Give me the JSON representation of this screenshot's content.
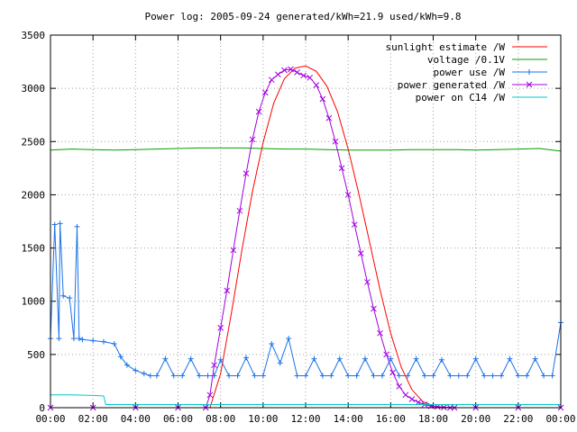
{
  "chart_data": {
    "type": "line",
    "title": "Power log: 2005-09-24 generated/kWh=21.9 used/kWh=9.8",
    "xlabel": "",
    "ylabel": "",
    "xlim": [
      0,
      24
    ],
    "ylim": [
      0,
      3500
    ],
    "grid": true,
    "legend_position": "top-right",
    "x_ticks": [
      "00:00",
      "02:00",
      "04:00",
      "06:00",
      "08:00",
      "10:00",
      "12:00",
      "14:00",
      "16:00",
      "18:00",
      "20:00",
      "22:00",
      "00:00"
    ],
    "y_ticks": [
      0,
      500,
      1000,
      1500,
      2000,
      2500,
      3000,
      3500
    ],
    "series": [
      {
        "name": "sunlight estimate /W",
        "color": "#ff0000",
        "style": "line",
        "x": [
          7.5,
          8,
          8.5,
          9,
          9.5,
          10,
          10.5,
          11,
          11.5,
          12,
          12.5,
          13,
          13.5,
          14,
          14.5,
          15,
          15.5,
          16,
          16.5,
          17,
          17.5,
          18,
          18.5,
          19,
          19.5
        ],
        "y": [
          0,
          320,
          880,
          1480,
          2030,
          2490,
          2860,
          3090,
          3190,
          3210,
          3160,
          3020,
          2780,
          2430,
          2010,
          1560,
          1110,
          700,
          380,
          170,
          60,
          15,
          5,
          0,
          0
        ]
      },
      {
        "name": "voltage /0.1V",
        "color": "#00a000",
        "style": "line",
        "x": [
          0,
          1,
          2,
          3,
          4,
          5,
          6,
          7,
          8,
          9,
          10,
          11,
          12,
          13,
          14,
          15,
          16,
          17,
          18,
          19,
          20,
          21,
          22,
          23,
          24
        ],
        "y": [
          2420,
          2430,
          2425,
          2420,
          2425,
          2430,
          2435,
          2440,
          2440,
          2440,
          2435,
          2430,
          2430,
          2425,
          2420,
          2420,
          2420,
          2425,
          2425,
          2425,
          2420,
          2425,
          2430,
          2435,
          2410
        ]
      },
      {
        "name": "power use /W",
        "color": "#1a73e8",
        "style": "linespoints-plus",
        "x": [
          0,
          0.2,
          0.4,
          0.45,
          0.6,
          0.9,
          1.1,
          1.25,
          1.35,
          1.5,
          2.0,
          2.5,
          3.0,
          3.3,
          3.6,
          4.0,
          4.4,
          4.7,
          5.0,
          5.4,
          5.8,
          6.2,
          6.6,
          7.0,
          7.4,
          7.7,
          8.0,
          8.4,
          8.8,
          9.2,
          9.6,
          10.0,
          10.4,
          10.8,
          11.2,
          11.6,
          12.0,
          12.4,
          12.8,
          13.2,
          13.6,
          14.0,
          14.4,
          14.8,
          15.2,
          15.6,
          16.0,
          16.4,
          16.8,
          17.2,
          17.6,
          18.0,
          18.4,
          18.8,
          19.2,
          19.6,
          20.0,
          20.4,
          20.8,
          21.2,
          21.6,
          22.0,
          22.4,
          22.8,
          23.2,
          23.6,
          24.0
        ],
        "y": [
          650,
          1720,
          650,
          1730,
          1050,
          1030,
          650,
          1700,
          650,
          640,
          630,
          620,
          600,
          480,
          400,
          350,
          320,
          300,
          300,
          460,
          300,
          300,
          460,
          300,
          300,
          300,
          450,
          300,
          300,
          470,
          300,
          300,
          600,
          420,
          650,
          300,
          300,
          460,
          300,
          300,
          460,
          300,
          300,
          460,
          300,
          300,
          460,
          300,
          300,
          460,
          300,
          300,
          450,
          300,
          300,
          300,
          460,
          300,
          300,
          300,
          460,
          300,
          300,
          460,
          300,
          300,
          800
        ]
      },
      {
        "name": "power generated /W",
        "color": "#a000e0",
        "style": "linespoints-x",
        "x": [
          0,
          2,
          4,
          6,
          7.3,
          7.5,
          7.7,
          8.0,
          8.3,
          8.6,
          8.9,
          9.2,
          9.5,
          9.8,
          10.1,
          10.4,
          10.7,
          11.0,
          11.3,
          11.6,
          11.9,
          12.2,
          12.5,
          12.8,
          13.1,
          13.4,
          13.7,
          14.0,
          14.3,
          14.6,
          14.9,
          15.2,
          15.5,
          15.8,
          16.1,
          16.4,
          16.7,
          17.0,
          17.3,
          17.6,
          17.9,
          18.2,
          18.5,
          18.8,
          19.0,
          20,
          22,
          24
        ],
        "y": [
          0,
          0,
          0,
          0,
          0,
          120,
          400,
          750,
          1100,
          1480,
          1850,
          2200,
          2520,
          2780,
          2960,
          3080,
          3130,
          3170,
          3180,
          3150,
          3120,
          3100,
          3030,
          2900,
          2720,
          2500,
          2250,
          2000,
          1720,
          1450,
          1180,
          930,
          700,
          500,
          330,
          200,
          120,
          80,
          50,
          30,
          15,
          8,
          3,
          0,
          0,
          0,
          0,
          0
        ]
      },
      {
        "name": "power on C14 /W",
        "color": "#00c8c8",
        "style": "line",
        "x": [
          0,
          1,
          2,
          2.5,
          2.6,
          4,
          6,
          8,
          10,
          12,
          14,
          16,
          18,
          20,
          22,
          24
        ],
        "y": [
          120,
          120,
          115,
          110,
          30,
          30,
          30,
          30,
          30,
          30,
          30,
          30,
          30,
          30,
          30,
          30
        ]
      }
    ]
  }
}
